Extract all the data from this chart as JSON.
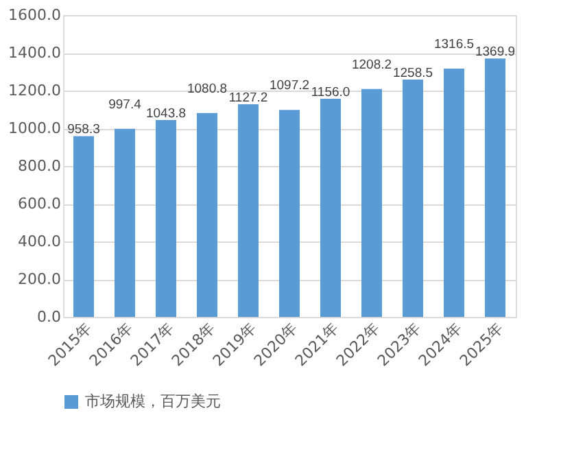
{
  "chart_data": {
    "type": "bar",
    "categories": [
      "2015年",
      "2016年",
      "2017年",
      "2018年",
      "2019年",
      "2020年",
      "2021年",
      "2022年",
      "2023年",
      "2024年",
      "2025年"
    ],
    "series": [
      {
        "name": "市场规模，百万美元",
        "color": "#5b9bd5",
        "values": [
          958.3,
          997.4,
          1043.8,
          1080.8,
          1127.2,
          1097.2,
          1156.0,
          1208.2,
          1258.5,
          1316.5,
          1369.9
        ],
        "value_labels": [
          "958.3",
          "997.4",
          "1043.8",
          "1080.8",
          "1127.2",
          "1097.2",
          "1156.0",
          "1208.2",
          "1258.5",
          "1316.5",
          "1369.9"
        ]
      }
    ],
    "ylim": [
      0,
      1600
    ],
    "yticks": [
      {
        "value": 0,
        "label": "0.0"
      },
      {
        "value": 200,
        "label": "200.0"
      },
      {
        "value": 400,
        "label": "400.0"
      },
      {
        "value": 600,
        "label": "600.0"
      },
      {
        "value": 800,
        "label": "800.0"
      },
      {
        "value": 1000,
        "label": "1000.0"
      },
      {
        "value": 1200,
        "label": "1200.0"
      },
      {
        "value": 1400,
        "label": "1400.0"
      },
      {
        "value": 1600,
        "label": "1600.0"
      }
    ],
    "grid": "y",
    "legend": "bottom"
  }
}
